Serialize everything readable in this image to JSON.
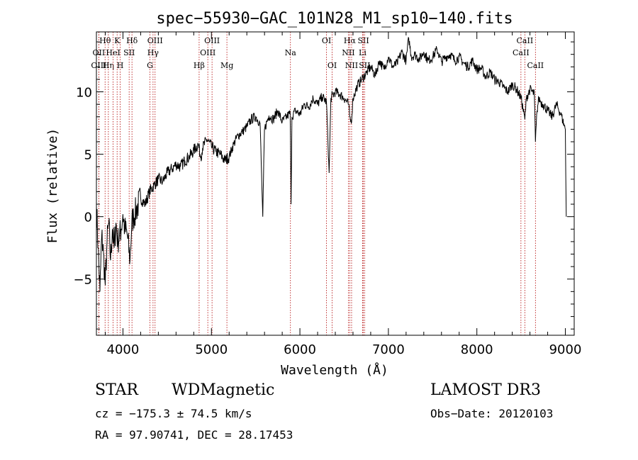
{
  "chart_data": {
    "type": "line",
    "title": "spec−55930−GAC_101N28_M1_sp10−140.fits",
    "xlabel": "Wavelength (Å)",
    "ylabel": "Flux (relative)",
    "xlim": [
      3700,
      9100
    ],
    "ylim": [
      -9.5,
      14.8
    ],
    "xticks": [
      4000,
      5000,
      6000,
      7000,
      8000,
      9000
    ],
    "yticks": [
      -5,
      0,
      5,
      10
    ],
    "grid": false,
    "series": [
      {
        "name": "flux",
        "x": [
          3700,
          3720,
          3740,
          3760,
          3780,
          3800,
          3820,
          3840,
          3860,
          3880,
          3900,
          3920,
          3940,
          3960,
          3980,
          4000,
          4020,
          4050,
          4080,
          4100,
          4120,
          4150,
          4200,
          4250,
          4300,
          4350,
          4400,
          4450,
          4500,
          4550,
          4600,
          4650,
          4700,
          4750,
          4800,
          4850,
          4880,
          4900,
          4950,
          5000,
          5050,
          5100,
          5150,
          5200,
          5250,
          5300,
          5350,
          5400,
          5450,
          5500,
          5550,
          5580,
          5600,
          5650,
          5700,
          5750,
          5800,
          5850,
          5890,
          5900,
          5910,
          5950,
          6000,
          6050,
          6100,
          6150,
          6200,
          6250,
          6300,
          6330,
          6350,
          6400,
          6450,
          6500,
          6550,
          6563,
          6580,
          6600,
          6650,
          6700,
          6750,
          6800,
          6850,
          6900,
          6950,
          7000,
          7050,
          7100,
          7150,
          7200,
          7230,
          7260,
          7300,
          7350,
          7400,
          7450,
          7500,
          7550,
          7600,
          7650,
          7700,
          7750,
          7800,
          7850,
          7900,
          7950,
          8000,
          8050,
          8100,
          8150,
          8200,
          8250,
          8300,
          8350,
          8400,
          8450,
          8500,
          8542,
          8560,
          8600,
          8650,
          8662,
          8680,
          8700,
          8720,
          8750,
          8800,
          8850,
          8900,
          8950,
          9000,
          9010
        ],
        "y": [
          1.0,
          -2.5,
          -6.0,
          -1.5,
          -3.0,
          -5.5,
          -2.0,
          -0.5,
          -3.5,
          -1.0,
          -2.5,
          -0.5,
          -2.0,
          -1.5,
          -1.0,
          0.2,
          -1.0,
          -1.5,
          -3.5,
          -0.5,
          0.0,
          0.5,
          1.5,
          1.0,
          2.0,
          2.5,
          3.0,
          2.8,
          3.5,
          3.8,
          4.2,
          4.0,
          4.5,
          4.8,
          5.3,
          5.8,
          4.8,
          5.5,
          6.2,
          5.6,
          5.2,
          5.0,
          4.5,
          4.8,
          5.8,
          6.5,
          6.8,
          7.2,
          7.8,
          8.0,
          7.5,
          0.0,
          7.0,
          8.1,
          7.8,
          8.5,
          7.6,
          8.0,
          8.3,
          1.0,
          8.0,
          8.5,
          8.2,
          9.0,
          8.8,
          9.5,
          9.0,
          9.6,
          9.2,
          3.5,
          9.5,
          10.0,
          9.8,
          9.5,
          9.0,
          8.0,
          7.5,
          9.5,
          10.5,
          11.0,
          11.5,
          12.0,
          11.3,
          12.5,
          11.8,
          12.8,
          12.0,
          12.3,
          13.2,
          12.5,
          14.3,
          12.8,
          13.0,
          12.6,
          13.2,
          12.5,
          12.8,
          13.4,
          12.4,
          12.8,
          13.0,
          12.5,
          12.8,
          12.3,
          12.0,
          12.5,
          11.8,
          11.9,
          11.2,
          11.6,
          11.0,
          10.8,
          10.4,
          10.0,
          10.6,
          10.2,
          9.5,
          7.8,
          9.5,
          10.2,
          9.8,
          6.0,
          8.5,
          9.5,
          9.2,
          9.0,
          8.5,
          8.0,
          9.0,
          8.2,
          7.0,
          0.0
        ]
      }
    ],
    "lines": [
      {
        "label": "Hθ",
        "x": 3798,
        "row": 1
      },
      {
        "label": "OII",
        "x": 3727,
        "row": 2
      },
      {
        "label": "OIII",
        "x": 3727,
        "row": 3
      },
      {
        "label": "Hη",
        "x": 3835,
        "row": 3
      },
      {
        "label": "K",
        "x": 3934,
        "row": 1
      },
      {
        "label": "HeI",
        "x": 3889,
        "row": 2
      },
      {
        "label": "H",
        "x": 3969,
        "row": 3
      },
      {
        "label": "SII",
        "x": 4070,
        "row": 2
      },
      {
        "label": "Hδ",
        "x": 4102,
        "row": 1
      },
      {
        "label": "OIII",
        "x": 4363,
        "row": 1
      },
      {
        "label": "Hγ",
        "x": 4340,
        "row": 2
      },
      {
        "label": "G",
        "x": 4305,
        "row": 3
      },
      {
        "label": "Hβ",
        "x": 4861,
        "row": 3
      },
      {
        "label": "OIII",
        "x": 5007,
        "row": 1
      },
      {
        "label": "OIII",
        "x": 4959,
        "row": 2
      },
      {
        "label": "Mg",
        "x": 5175,
        "row": 3
      },
      {
        "label": "Na",
        "x": 5893,
        "row": 2
      },
      {
        "label": "OI",
        "x": 6300,
        "row": 1
      },
      {
        "label": "OI",
        "x": 6364,
        "row": 3
      },
      {
        "label": "Hα",
        "x": 6563,
        "row": 1
      },
      {
        "label": "NII",
        "x": 6548,
        "row": 2
      },
      {
        "label": "NII",
        "x": 6584,
        "row": 3
      },
      {
        "label": "SII",
        "x": 6717,
        "row": 1
      },
      {
        "label": "Li",
        "x": 6708,
        "row": 2
      },
      {
        "label": "SII",
        "x": 6731,
        "row": 3
      },
      {
        "label": "CaII",
        "x": 8542,
        "row": 1
      },
      {
        "label": "CaII",
        "x": 8498,
        "row": 2
      },
      {
        "label": "CaII",
        "x": 8662,
        "row": 3
      }
    ]
  },
  "info": {
    "class": "STAR",
    "subclass": "WDMagnetic",
    "survey": "LAMOST DR3",
    "cz": "cz = −175.3 ± 74.5 km/s",
    "obs_date": "Obs−Date: 20120103",
    "radec": "RA =  97.90741, DEC =  28.17453"
  }
}
